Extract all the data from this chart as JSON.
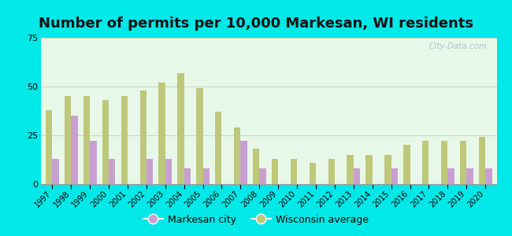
{
  "title": "Number of permits per 10,000 Markesan, WI residents",
  "years": [
    1997,
    1998,
    1999,
    2000,
    2001,
    2002,
    2003,
    2004,
    2005,
    2006,
    2007,
    2008,
    2009,
    2010,
    2011,
    2012,
    2013,
    2014,
    2015,
    2016,
    2017,
    2018,
    2019,
    2020
  ],
  "markesan": [
    13,
    35,
    22,
    13,
    0,
    13,
    13,
    8,
    8,
    0,
    22,
    8,
    0,
    0,
    0,
    0,
    8,
    0,
    8,
    0,
    0,
    8,
    8,
    8
  ],
  "wisconsin": [
    38,
    45,
    45,
    43,
    45,
    48,
    52,
    57,
    49,
    37,
    29,
    18,
    13,
    13,
    11,
    13,
    15,
    15,
    15,
    20,
    22,
    22,
    22,
    24
  ],
  "markesan_color": "#c8a0d0",
  "wisconsin_color": "#bec87a",
  "background_outer": "#00e8e8",
  "background_inner_top": "#d8f0e0",
  "background_inner_bottom": "#e8f8e8",
  "ylim": [
    0,
    75
  ],
  "yticks": [
    0,
    25,
    50,
    75
  ],
  "title_fontsize": 13,
  "bar_width": 0.35,
  "watermark": "City-Data.com",
  "legend_markesan": "Markesan city",
  "legend_wisconsin": "Wisconsin average",
  "grid_color": "#c8d8c0"
}
